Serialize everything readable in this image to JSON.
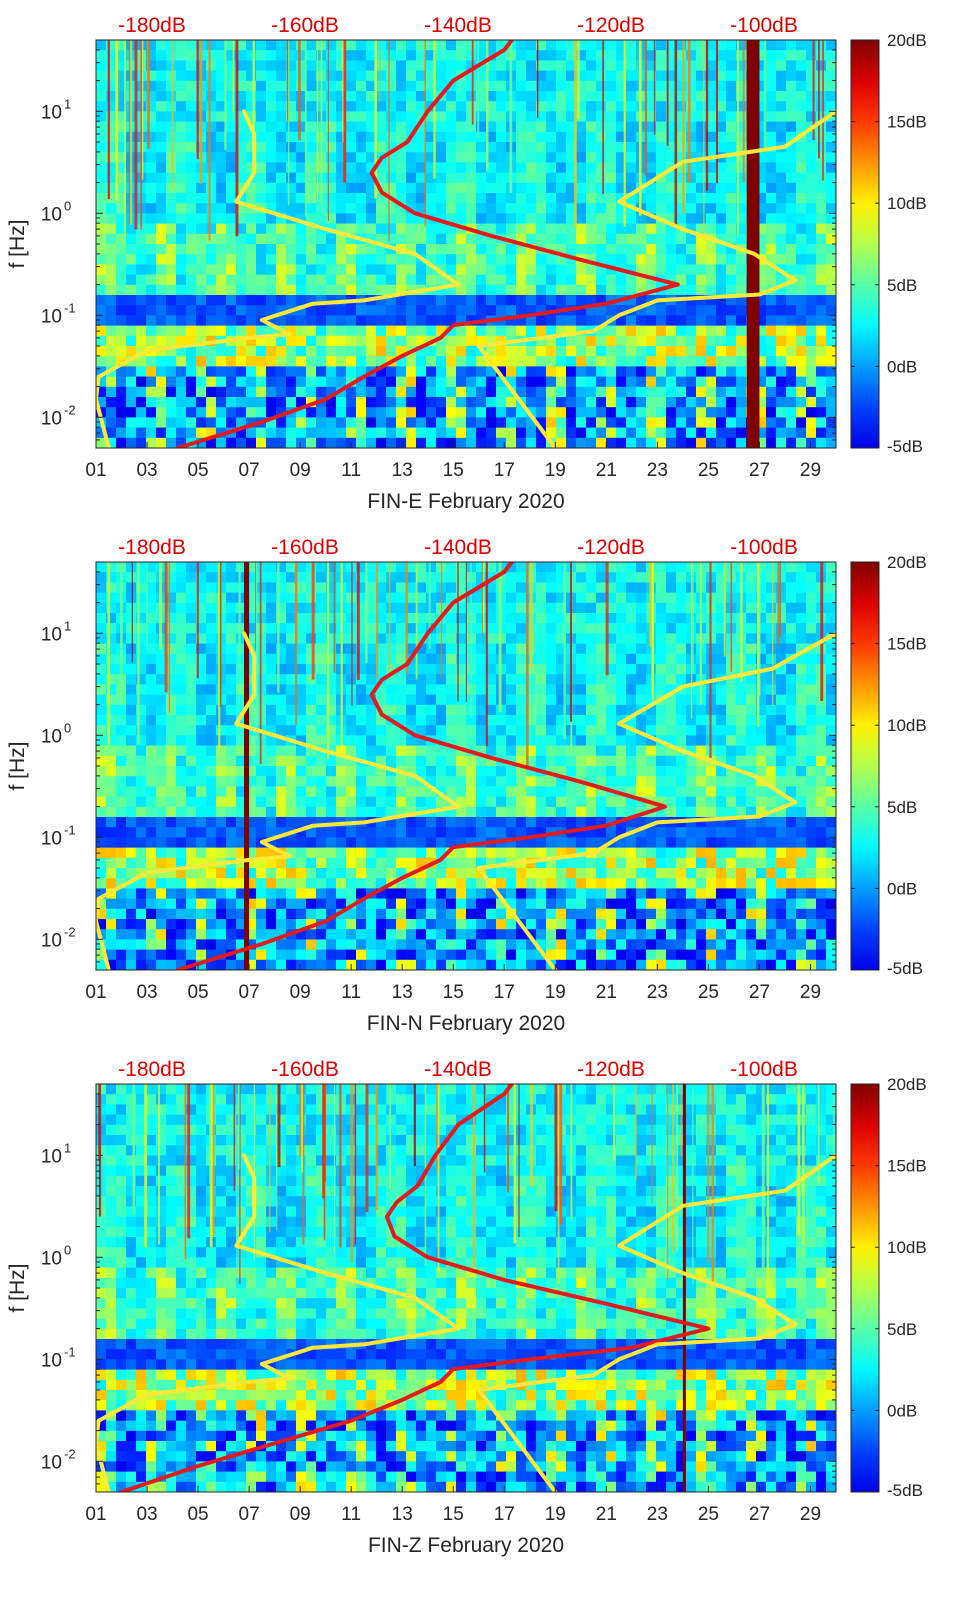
{
  "figure": {
    "colors": {
      "spectrogram_dark": "#00008f",
      "spectrogram_mid": "#1e9bff",
      "station_noise_curve": "#ffe838",
      "reference_model_curve": "#e41a1c",
      "top_axis_text": "#e00000"
    }
  },
  "chart_data": [
    {
      "type": "heatmap",
      "station": "FIN-E",
      "xlabel": "FIN-E February 2020",
      "ylabel": "f [Hz]",
      "x_ticks": [
        "01",
        "03",
        "05",
        "07",
        "09",
        "11",
        "13",
        "15",
        "17",
        "19",
        "21",
        "23",
        "25",
        "27",
        "29"
      ],
      "y_ticks": [
        {
          "label": "10",
          "exp": "-2",
          "value": 0.01
        },
        {
          "label": "10",
          "exp": "-1",
          "value": 0.1
        },
        {
          "label": "10",
          "exp": "0",
          "value": 1
        },
        {
          "label": "10",
          "exp": "1",
          "value": 10
        }
      ],
      "ylim_hz": [
        0.005,
        50
      ],
      "xlim_day": [
        1,
        30
      ],
      "top_axis_labels": [
        "-180dB",
        "-160dB",
        "-140dB",
        "-120dB",
        "-100dB"
      ],
      "colorbar_labels": [
        "20dB",
        "15dB",
        "10dB",
        "5dB",
        "0dB",
        "-5dB"
      ],
      "colorbar_range_db": [
        -5,
        20
      ],
      "gap_band_day": [
        26.5,
        27
      ],
      "series": [
        {
          "name": "yellow-noise-curve",
          "points": [
            [
              1.5,
              0.005
            ],
            [
              1.0,
              0.015
            ],
            [
              1.1,
              0.025
            ],
            [
              3.0,
              0.045
            ],
            [
              7.0,
              0.06
            ],
            [
              8.6,
              0.065
            ],
            [
              7.5,
              0.09
            ],
            [
              9.5,
              0.13
            ],
            [
              11.5,
              0.14
            ],
            [
              15.2,
              0.2
            ],
            [
              13.5,
              0.4
            ],
            [
              10.0,
              0.7
            ],
            [
              6.5,
              1.3
            ],
            [
              7.2,
              2.5
            ],
            [
              7.2,
              6
            ],
            [
              6.8,
              10
            ]
          ]
        },
        {
          "name": "red-model-curve",
          "points": [
            [
              4.2,
              0.005
            ],
            [
              7.5,
              0.009
            ],
            [
              10.0,
              0.015
            ],
            [
              11.5,
              0.025
            ],
            [
              13.0,
              0.04
            ],
            [
              14.5,
              0.06
            ],
            [
              15.0,
              0.08
            ],
            [
              18.0,
              0.1
            ],
            [
              21.0,
              0.13
            ],
            [
              23.8,
              0.2
            ],
            [
              20.0,
              0.35
            ],
            [
              16.5,
              0.6
            ],
            [
              13.5,
              1.0
            ],
            [
              12.2,
              1.6
            ],
            [
              11.8,
              2.5
            ],
            [
              12.2,
              3.5
            ],
            [
              13.2,
              5
            ],
            [
              14.0,
              10
            ],
            [
              15.0,
              20
            ],
            [
              17.0,
              40
            ],
            [
              17.3,
              50
            ]
          ]
        },
        {
          "name": "yellow-model-curve",
          "points": [
            [
              16.0,
              0.05
            ],
            [
              19.0,
              0.005
            ]
          ]
        },
        {
          "name": "yellow-high-curve",
          "points": [
            [
              30.0,
              10
            ],
            [
              28.0,
              4.5
            ],
            [
              24.0,
              3.2
            ],
            [
              21.5,
              1.3
            ],
            [
              24.0,
              0.7
            ],
            [
              26.8,
              0.4
            ],
            [
              28.4,
              0.22
            ],
            [
              27.0,
              0.16
            ],
            [
              23.0,
              0.14
            ],
            [
              21.5,
              0.1
            ],
            [
              20.5,
              0.07
            ],
            [
              16.0,
              0.05
            ]
          ]
        }
      ]
    },
    {
      "type": "heatmap",
      "station": "FIN-N",
      "xlabel": "FIN-N February 2020",
      "ylabel": "f [Hz]",
      "x_ticks": [
        "01",
        "03",
        "05",
        "07",
        "09",
        "11",
        "13",
        "15",
        "17",
        "19",
        "21",
        "23",
        "25",
        "27",
        "29"
      ],
      "y_ticks": [
        {
          "label": "10",
          "exp": "-2",
          "value": 0.01
        },
        {
          "label": "10",
          "exp": "-1",
          "value": 0.1
        },
        {
          "label": "10",
          "exp": "0",
          "value": 1
        },
        {
          "label": "10",
          "exp": "1",
          "value": 10
        }
      ],
      "ylim_hz": [
        0.005,
        50
      ],
      "xlim_day": [
        1,
        30
      ],
      "top_axis_labels": [
        "-180dB",
        "-160dB",
        "-140dB",
        "-120dB",
        "-100dB"
      ],
      "colorbar_labels": [
        "20dB",
        "15dB",
        "10dB",
        "5dB",
        "0dB",
        "-5dB"
      ],
      "colorbar_range_db": [
        -5,
        20
      ],
      "gap_band_day": [
        6.8,
        7.0
      ],
      "series": [
        {
          "name": "yellow-noise-curve",
          "points": [
            [
              1.5,
              0.005
            ],
            [
              1.0,
              0.015
            ],
            [
              1.1,
              0.025
            ],
            [
              3.0,
              0.045
            ],
            [
              7.0,
              0.06
            ],
            [
              8.6,
              0.065
            ],
            [
              7.5,
              0.09
            ],
            [
              9.5,
              0.13
            ],
            [
              11.5,
              0.14
            ],
            [
              15.2,
              0.2
            ],
            [
              13.5,
              0.4
            ],
            [
              10.0,
              0.7
            ],
            [
              6.5,
              1.3
            ],
            [
              7.2,
              2.5
            ],
            [
              7.2,
              6
            ],
            [
              6.8,
              10
            ]
          ]
        },
        {
          "name": "red-model-curve",
          "points": [
            [
              4.2,
              0.005
            ],
            [
              7.5,
              0.009
            ],
            [
              10.0,
              0.015
            ],
            [
              11.5,
              0.025
            ],
            [
              13.0,
              0.04
            ],
            [
              14.5,
              0.06
            ],
            [
              15.0,
              0.08
            ],
            [
              18.0,
              0.1
            ],
            [
              21.0,
              0.13
            ],
            [
              23.3,
              0.2
            ],
            [
              20.0,
              0.35
            ],
            [
              16.5,
              0.6
            ],
            [
              13.5,
              1.0
            ],
            [
              12.2,
              1.6
            ],
            [
              11.8,
              2.5
            ],
            [
              12.2,
              3.5
            ],
            [
              13.2,
              5
            ],
            [
              14.0,
              10
            ],
            [
              15.0,
              20
            ],
            [
              17.0,
              40
            ],
            [
              17.3,
              50
            ]
          ]
        },
        {
          "name": "yellow-model-curve",
          "points": [
            [
              16.0,
              0.05
            ],
            [
              19.0,
              0.005
            ]
          ]
        },
        {
          "name": "yellow-high-curve",
          "points": [
            [
              30.0,
              10
            ],
            [
              27.5,
              4.5
            ],
            [
              24.0,
              3.0
            ],
            [
              21.5,
              1.3
            ],
            [
              24.0,
              0.7
            ],
            [
              26.8,
              0.4
            ],
            [
              28.4,
              0.22
            ],
            [
              27.0,
              0.16
            ],
            [
              23.0,
              0.14
            ],
            [
              21.5,
              0.1
            ],
            [
              20.5,
              0.07
            ],
            [
              16.0,
              0.05
            ]
          ]
        }
      ]
    },
    {
      "type": "heatmap",
      "station": "FIN-Z",
      "xlabel": "FIN-Z February 2020",
      "ylabel": "f [Hz]",
      "x_ticks": [
        "01",
        "03",
        "05",
        "07",
        "09",
        "11",
        "13",
        "15",
        "17",
        "19",
        "21",
        "23",
        "25",
        "27",
        "29"
      ],
      "y_ticks": [
        {
          "label": "10",
          "exp": "-2",
          "value": 0.01
        },
        {
          "label": "10",
          "exp": "-1",
          "value": 0.1
        },
        {
          "label": "10",
          "exp": "0",
          "value": 1
        },
        {
          "label": "10",
          "exp": "1",
          "value": 10
        }
      ],
      "ylim_hz": [
        0.005,
        50
      ],
      "xlim_day": [
        1,
        30
      ],
      "top_axis_labels": [
        "-180dB",
        "-160dB",
        "-140dB",
        "-120dB",
        "-100dB"
      ],
      "colorbar_labels": [
        "20dB",
        "15dB",
        "10dB",
        "5dB",
        "0dB",
        "-5dB"
      ],
      "colorbar_range_db": [
        -5,
        20
      ],
      "gap_band_day": [
        24.0,
        24.1
      ],
      "series": [
        {
          "name": "yellow-noise-curve",
          "points": [
            [
              1.5,
              0.005
            ],
            [
              1.0,
              0.015
            ],
            [
              1.1,
              0.025
            ],
            [
              3.0,
              0.045
            ],
            [
              7.0,
              0.06
            ],
            [
              8.6,
              0.065
            ],
            [
              7.5,
              0.09
            ],
            [
              9.5,
              0.13
            ],
            [
              11.5,
              0.14
            ],
            [
              15.2,
              0.2
            ],
            [
              13.5,
              0.4
            ],
            [
              10.0,
              0.7
            ],
            [
              6.5,
              1.3
            ],
            [
              7.2,
              2.5
            ],
            [
              7.2,
              6
            ],
            [
              6.8,
              10
            ]
          ]
        },
        {
          "name": "red-model-curve",
          "points": [
            [
              2.0,
              0.005
            ],
            [
              5.0,
              0.009
            ],
            [
              8.0,
              0.015
            ],
            [
              11.0,
              0.025
            ],
            [
              13.0,
              0.04
            ],
            [
              14.5,
              0.06
            ],
            [
              15.0,
              0.08
            ],
            [
              18.0,
              0.1
            ],
            [
              22.0,
              0.13
            ],
            [
              25.0,
              0.2
            ],
            [
              21.0,
              0.35
            ],
            [
              17.0,
              0.6
            ],
            [
              14.0,
              1.0
            ],
            [
              12.7,
              1.6
            ],
            [
              12.4,
              2.5
            ],
            [
              12.8,
              3.5
            ],
            [
              13.6,
              5
            ],
            [
              14.3,
              10
            ],
            [
              15.2,
              20
            ],
            [
              17.0,
              40
            ],
            [
              17.3,
              50
            ]
          ]
        },
        {
          "name": "yellow-model-curve",
          "points": [
            [
              16.0,
              0.05
            ],
            [
              19.0,
              0.005
            ]
          ]
        },
        {
          "name": "yellow-high-curve",
          "points": [
            [
              30.0,
              10
            ],
            [
              28.0,
              4.5
            ],
            [
              24.0,
              3.2
            ],
            [
              21.5,
              1.3
            ],
            [
              24.0,
              0.7
            ],
            [
              26.8,
              0.4
            ],
            [
              28.4,
              0.22
            ],
            [
              27.0,
              0.16
            ],
            [
              23.0,
              0.14
            ],
            [
              21.5,
              0.1
            ],
            [
              20.5,
              0.07
            ],
            [
              16.0,
              0.05
            ]
          ]
        }
      ]
    }
  ]
}
